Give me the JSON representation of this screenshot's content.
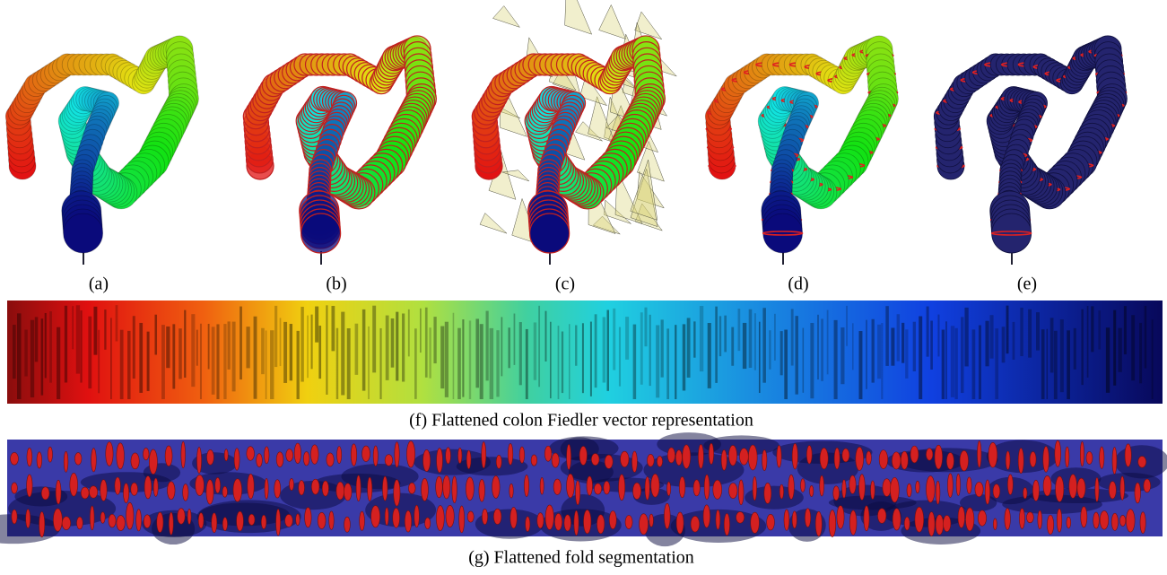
{
  "figure": {
    "panels": [
      "(a)",
      "(b)",
      "(c)",
      "(d)",
      "(e)"
    ],
    "strips": [
      {
        "caption": "(f) Flattened colon Fiedler vector representation"
      },
      {
        "caption": "(g) Flattened fold segmentation"
      }
    ]
  }
}
